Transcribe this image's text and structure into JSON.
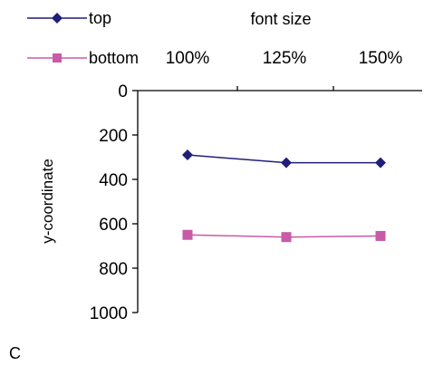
{
  "chart_data": {
    "type": "line",
    "xlabel": "font size",
    "ylabel": "y-coordinate",
    "categories": [
      "100%",
      "125%",
      "150%"
    ],
    "ylim": [
      0,
      1000
    ],
    "y_inverted": true,
    "yticks": [
      0,
      200,
      400,
      600,
      800,
      1000
    ],
    "grid": false,
    "legend_position": "top-left",
    "series": [
      {
        "name": "top",
        "values": [
          290,
          325,
          325
        ],
        "color": "#1f1f7a",
        "marker": "diamond"
      },
      {
        "name": "bottom",
        "values": [
          650,
          660,
          655
        ],
        "color": "#c85aa8",
        "marker": "square"
      }
    ]
  },
  "panel_label": "C"
}
